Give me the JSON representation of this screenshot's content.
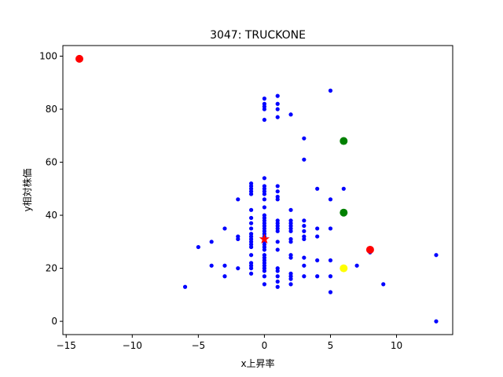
{
  "chart_data": {
    "type": "scatter",
    "title": "3047: TRUCKONE",
    "xlabel": "x上昇率",
    "ylabel": "y相対株価",
    "xlim": [
      -15.25,
      14.25
    ],
    "ylim": [
      -5,
      104
    ],
    "x_ticks": [
      -15,
      -10,
      -5,
      0,
      5,
      10
    ],
    "y_ticks": [
      0,
      20,
      40,
      60,
      80,
      100
    ],
    "grid": false,
    "series": [
      {
        "marker": "dot",
        "color": "#0000ff",
        "points": [
          [
            -6,
            13
          ],
          [
            -5,
            28
          ],
          [
            -4,
            30
          ],
          [
            -4,
            21
          ],
          [
            -3,
            35
          ],
          [
            -3,
            21
          ],
          [
            -3,
            17
          ],
          [
            -2,
            46
          ],
          [
            -2,
            32
          ],
          [
            -2,
            31
          ],
          [
            -2,
            20
          ],
          [
            -1,
            52
          ],
          [
            -1,
            51
          ],
          [
            -1,
            50
          ],
          [
            -1,
            49
          ],
          [
            -1,
            48
          ],
          [
            -1,
            42
          ],
          [
            -1,
            39
          ],
          [
            -1,
            37
          ],
          [
            -1,
            35
          ],
          [
            -1,
            33
          ],
          [
            -1,
            32
          ],
          [
            -1,
            31
          ],
          [
            -1,
            30
          ],
          [
            -1,
            29
          ],
          [
            -1,
            28
          ],
          [
            -1,
            25
          ],
          [
            -1,
            22
          ],
          [
            -1,
            21
          ],
          [
            -1,
            20
          ],
          [
            -1,
            18
          ],
          [
            0,
            84
          ],
          [
            0,
            82
          ],
          [
            0,
            81
          ],
          [
            0,
            80
          ],
          [
            0,
            76
          ],
          [
            0,
            54
          ],
          [
            0,
            51
          ],
          [
            0,
            50
          ],
          [
            0,
            49
          ],
          [
            0,
            48
          ],
          [
            0,
            46
          ],
          [
            0,
            43
          ],
          [
            0,
            40
          ],
          [
            0,
            39
          ],
          [
            0,
            38
          ],
          [
            0,
            37
          ],
          [
            0,
            36
          ],
          [
            0,
            35
          ],
          [
            0,
            34
          ],
          [
            0,
            33
          ],
          [
            0,
            32
          ],
          [
            0,
            30
          ],
          [
            0,
            29
          ],
          [
            0,
            28
          ],
          [
            0,
            27
          ],
          [
            0,
            25
          ],
          [
            0,
            24
          ],
          [
            0,
            23
          ],
          [
            0,
            22
          ],
          [
            0,
            21
          ],
          [
            0,
            20
          ],
          [
            0,
            19
          ],
          [
            0,
            17
          ],
          [
            0,
            14
          ],
          [
            1,
            85
          ],
          [
            1,
            82
          ],
          [
            1,
            80
          ],
          [
            1,
            77
          ],
          [
            1,
            51
          ],
          [
            1,
            49
          ],
          [
            1,
            47
          ],
          [
            1,
            46
          ],
          [
            1,
            38
          ],
          [
            1,
            37
          ],
          [
            1,
            36
          ],
          [
            1,
            35
          ],
          [
            1,
            34
          ],
          [
            1,
            30
          ],
          [
            1,
            27
          ],
          [
            1,
            20
          ],
          [
            1,
            19
          ],
          [
            1,
            17
          ],
          [
            1,
            15
          ],
          [
            1,
            13
          ],
          [
            2,
            78
          ],
          [
            2,
            42
          ],
          [
            2,
            38
          ],
          [
            2,
            37
          ],
          [
            2,
            36
          ],
          [
            2,
            35
          ],
          [
            2,
            34
          ],
          [
            2,
            31
          ],
          [
            2,
            30
          ],
          [
            2,
            25
          ],
          [
            2,
            24
          ],
          [
            2,
            18
          ],
          [
            2,
            17
          ],
          [
            2,
            16
          ],
          [
            2,
            14
          ],
          [
            3,
            69
          ],
          [
            3,
            61
          ],
          [
            3,
            38
          ],
          [
            3,
            36
          ],
          [
            3,
            34
          ],
          [
            3,
            32
          ],
          [
            3,
            31
          ],
          [
            3,
            24
          ],
          [
            3,
            21
          ],
          [
            3,
            17
          ],
          [
            4,
            50
          ],
          [
            4,
            35
          ],
          [
            4,
            32
          ],
          [
            4,
            23
          ],
          [
            4,
            17
          ],
          [
            5,
            87
          ],
          [
            5,
            46
          ],
          [
            5,
            35
          ],
          [
            5,
            23
          ],
          [
            5,
            17
          ],
          [
            5,
            11
          ],
          [
            6,
            50
          ],
          [
            7,
            21
          ],
          [
            8,
            26
          ],
          [
            9,
            14
          ],
          [
            13,
            25
          ],
          [
            13,
            0
          ]
        ]
      },
      {
        "marker": "circle",
        "color": "#ff0000",
        "points": [
          [
            -14,
            99
          ],
          [
            8,
            27
          ]
        ]
      },
      {
        "marker": "circle",
        "color": "#008000",
        "points": [
          [
            6,
            68
          ],
          [
            6,
            41
          ]
        ]
      },
      {
        "marker": "circle",
        "color": "#ffff00",
        "points": [
          [
            6,
            20
          ]
        ]
      },
      {
        "marker": "star",
        "color": "#ff0000",
        "points": [
          [
            0,
            31
          ]
        ]
      }
    ]
  }
}
